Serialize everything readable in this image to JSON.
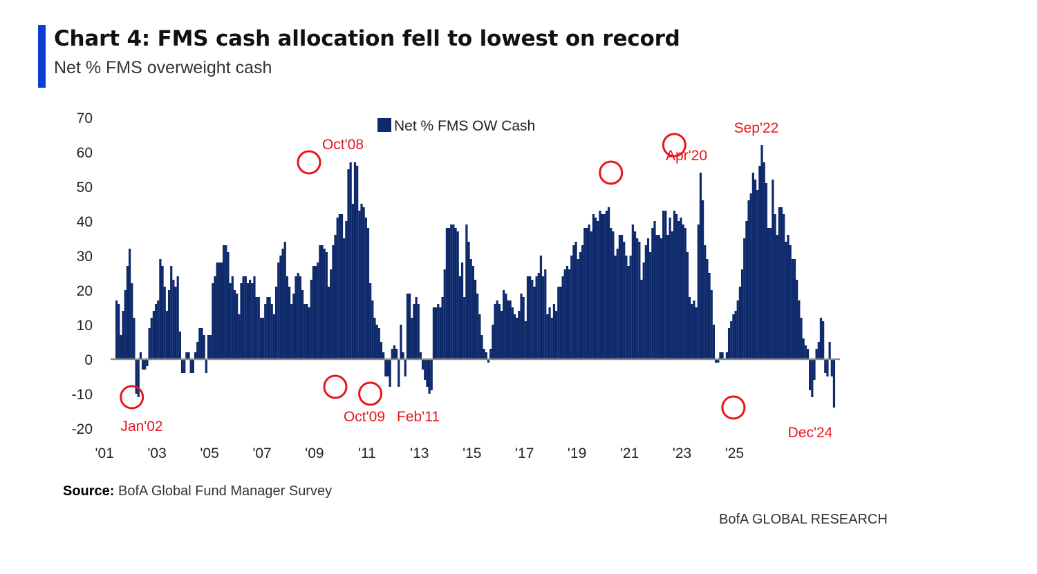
{
  "header": {
    "title": "Chart 4: FMS cash allocation fell to lowest on record",
    "subtitle": "Net % FMS overweight cash"
  },
  "footer": {
    "source_label": "Source:",
    "source_text": "BofA Global Fund Manager Survey",
    "brand": "BofA GLOBAL RESEARCH"
  },
  "chart_data": {
    "type": "bar",
    "title": "Chart 4: FMS cash allocation fell to lowest on record",
    "subtitle": "Net % FMS overweight cash",
    "xlabel": "",
    "ylabel": "",
    "ylim": [
      -20,
      70
    ],
    "yticks": [
      "70",
      "60",
      "50",
      "40",
      "30",
      "20",
      "10",
      "0",
      "-10",
      "-20"
    ],
    "xticks": [
      "'01",
      "'03",
      "'05",
      "'07",
      "'09",
      "'11",
      "'13",
      "'15",
      "'17",
      "'19",
      "'21",
      "'23",
      "'25"
    ],
    "legend": "top-center",
    "colors": {
      "bar": "#0f2a6b",
      "annotation": "#e8141c",
      "zero_line": "#8c8c8c"
    },
    "series": [
      {
        "name": "Net % FMS OW Cash",
        "start": "2001-06",
        "frequency": "monthly",
        "values": [
          17,
          16,
          7,
          14,
          20,
          27,
          32,
          22,
          12,
          -10,
          -11,
          2,
          -3,
          -3,
          -2,
          9,
          12,
          14,
          16,
          17,
          29,
          27,
          21,
          14,
          20,
          27,
          23,
          21,
          24,
          8,
          -4,
          -4,
          2,
          2,
          -4,
          -4,
          2,
          5,
          9,
          9,
          7,
          -4,
          7,
          7,
          22,
          24,
          28,
          28,
          28,
          33,
          33,
          31,
          22,
          24,
          20,
          19,
          13,
          22,
          24,
          24,
          22,
          23,
          22,
          24,
          18,
          18,
          12,
          12,
          16,
          18,
          18,
          16,
          13,
          21,
          28,
          30,
          32,
          34,
          24,
          21,
          16,
          19,
          24,
          25,
          24,
          20,
          16,
          16,
          15,
          23,
          27,
          27,
          28,
          33,
          33,
          32,
          31,
          21,
          26,
          33,
          36,
          41,
          42,
          42,
          35,
          40,
          55,
          57,
          45,
          57,
          56,
          43,
          45,
          44,
          41,
          38,
          22,
          17,
          12,
          10,
          9,
          5,
          2,
          -5,
          -5,
          -8,
          3,
          4,
          3,
          -8,
          10,
          2,
          -5,
          19,
          19,
          12,
          16,
          18,
          16,
          2,
          -3,
          -6,
          -8,
          -10,
          -9,
          15,
          15,
          16,
          15,
          18,
          26,
          38,
          38,
          39,
          39,
          38,
          37,
          24,
          28,
          18,
          39,
          34,
          29,
          27,
          23,
          19,
          13,
          7,
          3,
          2,
          -1,
          3,
          10,
          16,
          17,
          16,
          14,
          20,
          19,
          17,
          17,
          15,
          13,
          12,
          14,
          19,
          18,
          11,
          24,
          24,
          23,
          21,
          24,
          25,
          30,
          24,
          26,
          13,
          15,
          12,
          16,
          14,
          21,
          21,
          24,
          26,
          27,
          26,
          30,
          33,
          34,
          29,
          31,
          33,
          38,
          38,
          39,
          37,
          42,
          41,
          40,
          43,
          42,
          42,
          43,
          44,
          38,
          37,
          30,
          32,
          36,
          36,
          34,
          30,
          27,
          30,
          39,
          37,
          35,
          34,
          23,
          28,
          33,
          35,
          31,
          38,
          40,
          36,
          36,
          35,
          43,
          43,
          36,
          41,
          37,
          43,
          42,
          40,
          41,
          39,
          38,
          31,
          18,
          16,
          17,
          15,
          39,
          54,
          46,
          33,
          29,
          25,
          20,
          10,
          -1,
          -1,
          2,
          2,
          0,
          2,
          9,
          11,
          13,
          14,
          17,
          21,
          26,
          35,
          40,
          46,
          48,
          54,
          52,
          49,
          56,
          62,
          57,
          51,
          38,
          38,
          52,
          42,
          36,
          44,
          44,
          42,
          34,
          36,
          33,
          29,
          29,
          23,
          17,
          12,
          6,
          4,
          3,
          -9,
          -11,
          -6,
          3,
          5,
          12,
          11,
          -4,
          -5,
          5,
          -5,
          -14
        ]
      }
    ],
    "annotations": [
      {
        "label": "Jan'02",
        "date": "2002-01",
        "value": -11
      },
      {
        "label": "Oct'08",
        "date": "2008-10",
        "value": 57
      },
      {
        "label": "Oct'09",
        "date": "2009-10",
        "value": -8
      },
      {
        "label": "Feb'11",
        "date": "2011-02",
        "value": -10
      },
      {
        "label": "Apr'20",
        "date": "2020-04",
        "value": 54
      },
      {
        "label": "Sep'22",
        "date": "2022-09",
        "value": 62
      },
      {
        "label": "Dec'24",
        "date": "2024-12",
        "value": -14
      }
    ]
  }
}
